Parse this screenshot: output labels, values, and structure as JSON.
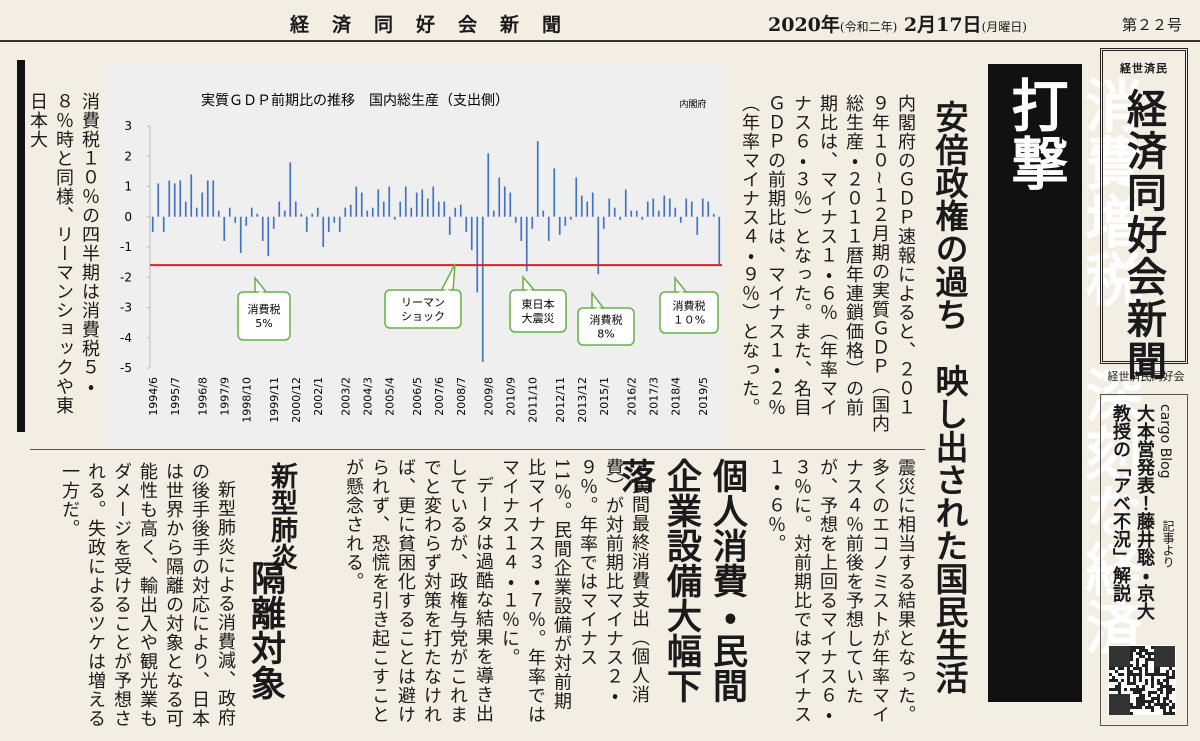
{
  "header": {
    "title": "経　済　同　好　会　新　聞",
    "date_year": "2020年",
    "date_era": "(令和二年)",
    "date_day": "2月17日",
    "date_weekday": "(月曜日)",
    "issue": "第２２号"
  },
  "headline": "消費増税　深刻な経済打撃",
  "subheadline": "安倍政権の過ち　映し出された国民生活",
  "lead": {
    "paragraph_1": "内閣府のＧＤＰ速報によると、２０１９年１０~１２月期の実質ＧＤＰ（国内総生産・２０１１暦年連鎖価格）の前期比は、マイナス１・６％（年率マイナス６・３％）となった。また、名目ＧＤＰの前期比は、マイナス１・２％（年率マイナス４・９％）となった。",
    "paragraph_2": "消費税１０％の四半期は消費税５・８％時と同様、リーマンショックや東日本大",
    "paragraph_2_continued": "震災に相当する結果となった。多くのエコノミストが年率マイナス４％前後を予想していたが、予想を上回るマイナス６・３％に。対前期比ではマイナス１・６％。"
  },
  "articles": [
    {
      "heading": "個人消費・民間企業設備大幅下落",
      "paragraphs": [
        "民間最終消費支出（個人消費）が対前期比マイナス２・９％。年率ではマイナス11％。民間企業設備が対前期比マイナス３・７％。年率ではマイナス１４・１％に。",
        "データは過酷な結果を導き出しているが、政権与党がこれまでと変わらず対策を打たなければ、更に貧困化することは避けられず、恐慌を引き起こすことが懸念される。"
      ]
    },
    {
      "kicker": "新型肺炎",
      "heading": "隔離対象",
      "paragraphs": [
        "新型肺炎による消費減、政府の後手後手の対応により、日本は世界から隔離の対象となる可能性も高く、輸出入や観光業もダメージを受けることが予想される。失政によるツケは増える一方だ。"
      ]
    }
  ],
  "sidebar": {
    "logo_small": "経世済民",
    "logo": "経済同好会新聞",
    "organization": "経世済民同好会",
    "blog_label": "cargo Blog",
    "blog_suffix": "記事より",
    "blog_title": "大本営発表！藤井聡・京大教授の「アベ不況」解説"
  },
  "chart": {
    "type": "bar",
    "title": "実質ＧＤＰ前期比の推移　国内総生産（支出側）",
    "source": "内閣府",
    "color": "#4472c4",
    "ylim": [
      -5,
      3
    ],
    "yticks": [
      3,
      2,
      1,
      0,
      -1,
      -2,
      -3,
      -4,
      -5
    ],
    "reference_line": {
      "value": -1.6,
      "color": "#e02020"
    },
    "categories": [
      "1994/6",
      null,
      null,
      null,
      "1995/7",
      null,
      null,
      null,
      null,
      "1996/8",
      null,
      null,
      null,
      "1997/9",
      null,
      null,
      null,
      "1998/10",
      null,
      null,
      null,
      null,
      "1999/11",
      null,
      null,
      null,
      "2000/12",
      null,
      null,
      null,
      "2002/1",
      null,
      null,
      null,
      null,
      "2003/2",
      null,
      null,
      null,
      "2004/3",
      null,
      null,
      null,
      "2005/4",
      null,
      null,
      null,
      null,
      "2006/5",
      null,
      null,
      null,
      "2007/6",
      null,
      null,
      null,
      "2008/7",
      null,
      null,
      null,
      null,
      "2009/8",
      null,
      null,
      null,
      "2010/9",
      null,
      null,
      null,
      "2011/10",
      null,
      null,
      null,
      null,
      "2012/11",
      null,
      null,
      null,
      "2013/12",
      null,
      null,
      null,
      "2015/1",
      null,
      null,
      null,
      null,
      "2016/2",
      null,
      null,
      null,
      "2017/3",
      null,
      null,
      null,
      "2018/4",
      null,
      null,
      null,
      null,
      "2019/5",
      null,
      null,
      null
    ],
    "values": [
      -0.5,
      1.1,
      -0.5,
      1.2,
      1.1,
      1.2,
      0.5,
      1.4,
      0.3,
      0.8,
      1.2,
      1.2,
      0.2,
      -0.8,
      0.3,
      -0.2,
      -1.2,
      -0.3,
      0.3,
      0.1,
      -0.8,
      -1.3,
      -0.4,
      0.5,
      0.2,
      1.8,
      0.5,
      0.1,
      -0.5,
      0.1,
      0.3,
      -1.0,
      -0.5,
      -0.2,
      -0.5,
      0.3,
      0.4,
      1.0,
      0.8,
      0.2,
      0.3,
      0.9,
      0.5,
      1.0,
      -0.1,
      0.5,
      1.0,
      0.3,
      0.8,
      0.9,
      0.6,
      1.0,
      0.5,
      0.5,
      -0.6,
      0.3,
      0.4,
      -0.5,
      -1.1,
      -2.5,
      -4.8,
      2.1,
      0.2,
      1.3,
      1.0,
      0.8,
      -0.2,
      -0.8,
      -1.8,
      -0.4,
      2.5,
      0.2,
      -0.8,
      1.6,
      -0.6,
      -0.3,
      -0.1,
      1.3,
      0.7,
      0.5,
      0.8,
      -1.9,
      -0.4,
      0.6,
      0.3,
      -0.1,
      0.9,
      0.2,
      0.2,
      -0.1,
      0.5,
      0.6,
      0.2,
      0.7,
      0.6,
      0.3,
      -0.2,
      0.6,
      0.5,
      -0.6,
      0.6,
      0.5,
      0.1,
      -1.6
    ],
    "annotations": [
      {
        "lines": [
          "消費税",
          "5%"
        ]
      },
      {
        "lines": [
          "リーマン",
          "ショック"
        ]
      },
      {
        "lines": [
          "東日本",
          "大震災"
        ]
      },
      {
        "lines": [
          "消費税",
          "8%"
        ]
      },
      {
        "lines": [
          "消費税",
          "１０%"
        ]
      }
    ]
  }
}
